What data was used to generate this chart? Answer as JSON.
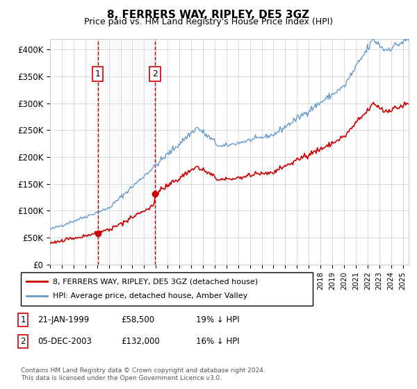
{
  "title": "8, FERRERS WAY, RIPLEY, DE5 3GZ",
  "subtitle": "Price paid vs. HM Land Registry's House Price Index (HPI)",
  "ylabel_ticks": [
    "£0",
    "£50K",
    "£100K",
    "£150K",
    "£200K",
    "£250K",
    "£300K",
    "£350K",
    "£400K"
  ],
  "ylim": [
    0,
    420000
  ],
  "xlim_start": 1995.0,
  "xlim_end": 2025.5,
  "sale1_date": 1999.055,
  "sale1_price": 58500,
  "sale1_label": "1",
  "sale2_date": 2003.92,
  "sale2_price": 132000,
  "sale2_label": "2",
  "legend_line1": "8, FERRERS WAY, RIPLEY, DE5 3GZ (detached house)",
  "legend_line2": "HPI: Average price, detached house, Amber Valley",
  "table_row1": [
    "1",
    "21-JAN-1999",
    "£58,500",
    "19% ↓ HPI"
  ],
  "table_row2": [
    "2",
    "05-DEC-2003",
    "£132,000",
    "16% ↓ HPI"
  ],
  "footnote": "Contains HM Land Registry data © Crown copyright and database right 2024.\nThis data is licensed under the Open Government Licence v3.0.",
  "hpi_color": "#6699cc",
  "price_color": "#cc0000",
  "shade_color": "#d0e4f0",
  "grid_color": "#cccccc",
  "background_color": "#ffffff"
}
